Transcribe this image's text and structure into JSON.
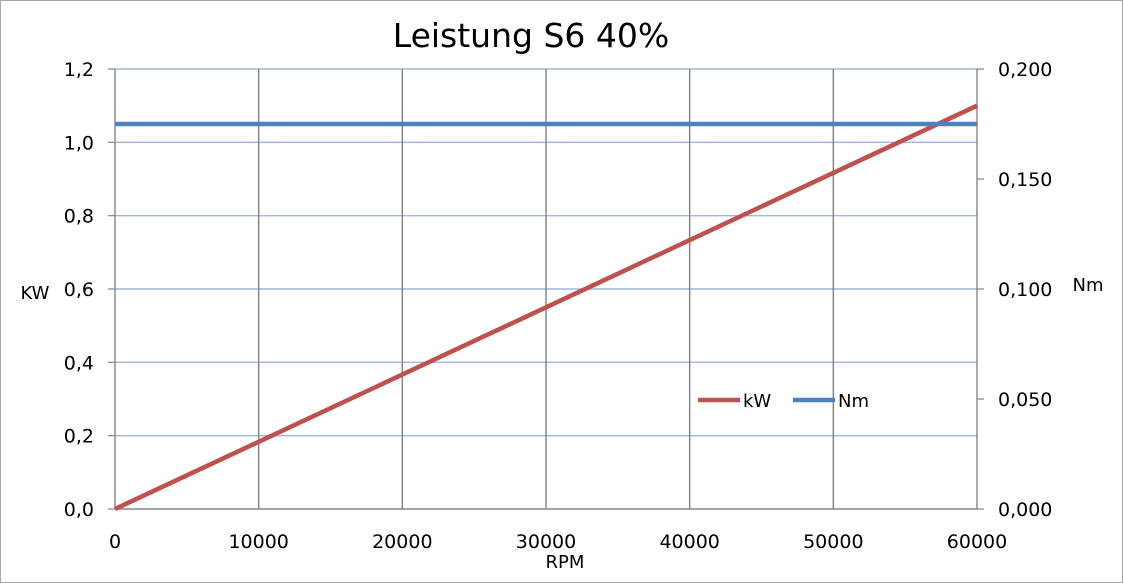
{
  "chart_data": {
    "type": "line",
    "title": "Leistung S6 40%",
    "xlabel": "RPM",
    "ylabel": "KW",
    "y2label": "Nm",
    "xlim": [
      0,
      60000
    ],
    "ylim": [
      0,
      1.2
    ],
    "y2lim": [
      0,
      0.2
    ],
    "x_ticks": [
      "0",
      "10000",
      "20000",
      "30000",
      "40000",
      "50000",
      "60000"
    ],
    "y_ticks": [
      "0,0",
      "0,2",
      "0,4",
      "0,6",
      "0,8",
      "1,0",
      "1,2"
    ],
    "y2_ticks": [
      "0,000",
      "0,050",
      "0,100",
      "0,150",
      "0,200"
    ],
    "grid": true,
    "legend_position": "center-right",
    "series": [
      {
        "name": "kW",
        "axis": "left",
        "color": "#c0504d",
        "x": [
          0,
          60000
        ],
        "values": [
          0.0,
          1.1
        ]
      },
      {
        "name": "Nm",
        "axis": "right",
        "color": "#4f81bd",
        "x": [
          0,
          60000
        ],
        "values": [
          0.175,
          0.175
        ]
      }
    ],
    "colors": {
      "vertical_grid": "#808080",
      "horizontal_grid": "#9bb7e0",
      "axis_line": "#868686"
    }
  }
}
